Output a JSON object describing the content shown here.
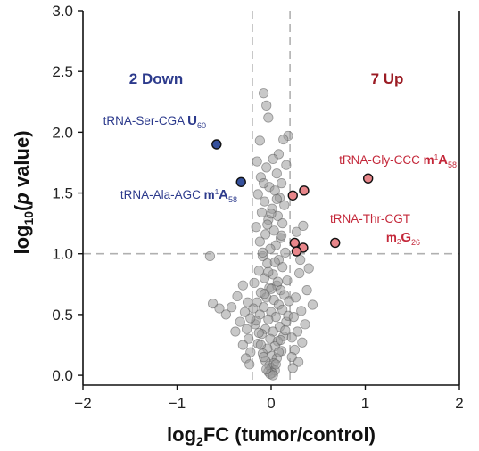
{
  "colors": {
    "down": "#2c3a8c",
    "down_fill": "#35509c",
    "up": "#9b1c24",
    "up_text": "#c4283a",
    "up_fill": "#e8868a",
    "ns_fill": "#9a9a9a",
    "threshold": "#b0b0b0"
  },
  "chart_data": {
    "type": "scatter",
    "xlabel_parts": [
      "log",
      "2",
      "FC (tumor/control)"
    ],
    "ylabel_parts": [
      "log",
      "10",
      "(",
      "p",
      " value)"
    ],
    "xlim": [
      -2,
      2
    ],
    "ylim": [
      -0.08,
      3.0
    ],
    "xticks": [
      -2,
      -1,
      0,
      1,
      2
    ],
    "xtick_labels": [
      "−2",
      "−1",
      "0",
      "1",
      "2"
    ],
    "yticks": [
      0.0,
      0.5,
      1.0,
      1.5,
      2.0,
      2.5,
      3.0
    ],
    "ytick_labels": [
      "0.0",
      "0.5",
      "1.0",
      "1.5",
      "2.0",
      "2.5",
      "3.0"
    ],
    "thresholds": {
      "x": [
        -0.2,
        0.2
      ],
      "y": 1.0
    },
    "grid": false,
    "counts": {
      "down": "2 Down",
      "up": "7 Up"
    },
    "down_points": [
      {
        "x": -0.58,
        "y": 1.9
      },
      {
        "x": -0.32,
        "y": 1.59
      }
    ],
    "up_points": [
      {
        "x": 1.03,
        "y": 1.62
      },
      {
        "x": 0.35,
        "y": 1.52
      },
      {
        "x": 0.23,
        "y": 1.48
      },
      {
        "x": 0.68,
        "y": 1.09
      },
      {
        "x": 0.25,
        "y": 1.09
      },
      {
        "x": 0.34,
        "y": 1.05
      },
      {
        "x": 0.27,
        "y": 1.02
      }
    ],
    "annotations": {
      "ser": {
        "name": "tRNA-Ser-CGA",
        "mod": "U",
        "sub": "60"
      },
      "ala": {
        "name": "tRNA-Ala-AGC",
        "mod_pre": "m",
        "sup": "1",
        "mod": "A",
        "sub": "58"
      },
      "gly": {
        "name": "tRNA-Gly-CCC",
        "mod_pre": "m",
        "sup": "1",
        "mod": "A",
        "sub": "58"
      },
      "thr": {
        "name": "tRNA-Thr-CGT",
        "mod_pre": "m",
        "sup": "2",
        "mod": "G",
        "sub": "26"
      }
    },
    "ns_points": [
      {
        "x": -0.08,
        "y": 2.32
      },
      {
        "x": -0.05,
        "y": 2.22
      },
      {
        "x": -0.03,
        "y": 2.12
      },
      {
        "x": 0.18,
        "y": 1.97
      },
      {
        "x": 0.13,
        "y": 1.94
      },
      {
        "x": -0.12,
        "y": 1.93
      },
      {
        "x": 0.08,
        "y": 1.82
      },
      {
        "x": 0.02,
        "y": 1.78
      },
      {
        "x": -0.15,
        "y": 1.76
      },
      {
        "x": 0.16,
        "y": 1.73
      },
      {
        "x": -0.05,
        "y": 1.71
      },
      {
        "x": 0.06,
        "y": 1.66
      },
      {
        "x": -0.11,
        "y": 1.63
      },
      {
        "x": 0.11,
        "y": 1.58
      },
      {
        "x": -0.02,
        "y": 1.55
      },
      {
        "x": 0.04,
        "y": 1.52
      },
      {
        "x": -0.14,
        "y": 1.49
      },
      {
        "x": 0.09,
        "y": 1.46
      },
      {
        "x": -0.07,
        "y": 1.43
      },
      {
        "x": 0.14,
        "y": 1.4
      },
      {
        "x": 0.01,
        "y": 1.37
      },
      {
        "x": -0.1,
        "y": 1.34
      },
      {
        "x": 0.07,
        "y": 1.31
      },
      {
        "x": -0.03,
        "y": 1.28
      },
      {
        "x": 0.12,
        "y": 1.25
      },
      {
        "x": -0.16,
        "y": 1.22
      },
      {
        "x": 0.03,
        "y": 1.19
      },
      {
        "x": -0.06,
        "y": 1.16
      },
      {
        "x": 0.1,
        "y": 1.13
      },
      {
        "x": -0.12,
        "y": 1.1
      },
      {
        "x": 0.05,
        "y": 1.07
      },
      {
        "x": -0.01,
        "y": 1.04
      },
      {
        "x": 0.15,
        "y": 1.01
      },
      {
        "x": -0.09,
        "y": 0.98
      },
      {
        "x": 0.08,
        "y": 0.95
      },
      {
        "x": -0.04,
        "y": 0.92
      },
      {
        "x": 0.12,
        "y": 0.89
      },
      {
        "x": -0.13,
        "y": 0.86
      },
      {
        "x": 0.02,
        "y": 0.83
      },
      {
        "x": -0.07,
        "y": 0.8
      },
      {
        "x": 0.17,
        "y": 0.78
      },
      {
        "x": -0.18,
        "y": 0.76
      },
      {
        "x": 0.06,
        "y": 0.74
      },
      {
        "x": -0.02,
        "y": 0.72
      },
      {
        "x": 0.1,
        "y": 0.7
      },
      {
        "x": -0.11,
        "y": 0.68
      },
      {
        "x": 0.14,
        "y": 0.66
      },
      {
        "x": -0.05,
        "y": 0.64
      },
      {
        "x": 0.03,
        "y": 0.62
      },
      {
        "x": -0.15,
        "y": 0.6
      },
      {
        "x": 0.08,
        "y": 0.58
      },
      {
        "x": -0.08,
        "y": 0.56
      },
      {
        "x": 0.12,
        "y": 0.54
      },
      {
        "x": 0.0,
        "y": 0.52
      },
      {
        "x": -0.12,
        "y": 0.5
      },
      {
        "x": 0.05,
        "y": 0.48
      },
      {
        "x": -0.03,
        "y": 0.46
      },
      {
        "x": 0.16,
        "y": 0.44
      },
      {
        "x": -0.17,
        "y": 0.42
      },
      {
        "x": 0.09,
        "y": 0.4
      },
      {
        "x": -0.06,
        "y": 0.38
      },
      {
        "x": 0.02,
        "y": 0.36
      },
      {
        "x": -0.1,
        "y": 0.34
      },
      {
        "x": 0.13,
        "y": 0.32
      },
      {
        "x": -0.01,
        "y": 0.3
      },
      {
        "x": 0.07,
        "y": 0.28
      },
      {
        "x": -0.14,
        "y": 0.26
      },
      {
        "x": 0.04,
        "y": 0.24
      },
      {
        "x": -0.04,
        "y": 0.22
      },
      {
        "x": 0.11,
        "y": 0.2
      },
      {
        "x": -0.09,
        "y": 0.18
      },
      {
        "x": 0.01,
        "y": 0.16
      },
      {
        "x": 0.06,
        "y": 0.14
      },
      {
        "x": -0.06,
        "y": 0.12
      },
      {
        "x": 0.03,
        "y": 0.1
      },
      {
        "x": -0.02,
        "y": 0.08
      },
      {
        "x": 0.0,
        "y": 0.06
      },
      {
        "x": 0.04,
        "y": 0.04
      },
      {
        "x": -0.03,
        "y": 0.03
      },
      {
        "x": 0.01,
        "y": 0.02
      },
      {
        "x": -0.01,
        "y": 0.01
      },
      {
        "x": 0.02,
        "y": 0.0
      },
      {
        "x": -0.05,
        "y": 0.05
      },
      {
        "x": 0.05,
        "y": 0.09
      },
      {
        "x": -0.08,
        "y": 0.15
      },
      {
        "x": 0.08,
        "y": 0.19
      },
      {
        "x": -0.11,
        "y": 0.25
      },
      {
        "x": 0.1,
        "y": 0.29
      },
      {
        "x": -0.13,
        "y": 0.35
      },
      {
        "x": 0.15,
        "y": 0.37
      },
      {
        "x": -0.16,
        "y": 0.45
      },
      {
        "x": 0.18,
        "y": 0.49
      },
      {
        "x": -0.19,
        "y": 0.55
      },
      {
        "x": 0.19,
        "y": 0.61
      },
      {
        "x": -0.07,
        "y": 0.67
      },
      {
        "x": 0.0,
        "y": 0.71
      },
      {
        "x": 0.07,
        "y": 0.77
      },
      {
        "x": -0.03,
        "y": 0.85
      },
      {
        "x": 0.04,
        "y": 0.93
      },
      {
        "x": -0.09,
        "y": 1.01
      },
      {
        "x": 0.11,
        "y": 1.15
      },
      {
        "x": -0.04,
        "y": 1.24
      },
      {
        "x": 0.0,
        "y": 1.33
      },
      {
        "x": 0.06,
        "y": 1.45
      },
      {
        "x": -0.08,
        "y": 1.58
      },
      {
        "x": -0.3,
        "y": 0.74
      },
      {
        "x": -0.36,
        "y": 0.65
      },
      {
        "x": -0.25,
        "y": 0.6
      },
      {
        "x": -0.42,
        "y": 0.56
      },
      {
        "x": -0.28,
        "y": 0.52
      },
      {
        "x": -0.48,
        "y": 0.5
      },
      {
        "x": -0.22,
        "y": 0.47
      },
      {
        "x": -0.33,
        "y": 0.44
      },
      {
        "x": -0.26,
        "y": 0.38
      },
      {
        "x": -0.38,
        "y": 0.36
      },
      {
        "x": -0.24,
        "y": 0.3
      },
      {
        "x": -0.3,
        "y": 0.25
      },
      {
        "x": -0.22,
        "y": 0.19
      },
      {
        "x": -0.27,
        "y": 0.14
      },
      {
        "x": -0.23,
        "y": 0.09
      },
      {
        "x": -0.65,
        "y": 0.98
      },
      {
        "x": -0.62,
        "y": 0.59
      },
      {
        "x": -0.55,
        "y": 0.55
      },
      {
        "x": 0.3,
        "y": 0.84
      },
      {
        "x": 0.38,
        "y": 0.7
      },
      {
        "x": 0.26,
        "y": 0.64
      },
      {
        "x": 0.44,
        "y": 0.58
      },
      {
        "x": 0.32,
        "y": 0.53
      },
      {
        "x": 0.24,
        "y": 0.48
      },
      {
        "x": 0.36,
        "y": 0.42
      },
      {
        "x": 0.28,
        "y": 0.36
      },
      {
        "x": 0.22,
        "y": 0.31
      },
      {
        "x": 0.33,
        "y": 0.27
      },
      {
        "x": 0.25,
        "y": 0.21
      },
      {
        "x": 0.22,
        "y": 0.15
      },
      {
        "x": 0.29,
        "y": 0.11
      },
      {
        "x": 0.23,
        "y": 0.06
      },
      {
        "x": 0.31,
        "y": 0.95
      },
      {
        "x": 0.27,
        "y": 1.18
      },
      {
        "x": 0.34,
        "y": 1.23
      },
      {
        "x": 0.4,
        "y": 0.88
      }
    ]
  }
}
